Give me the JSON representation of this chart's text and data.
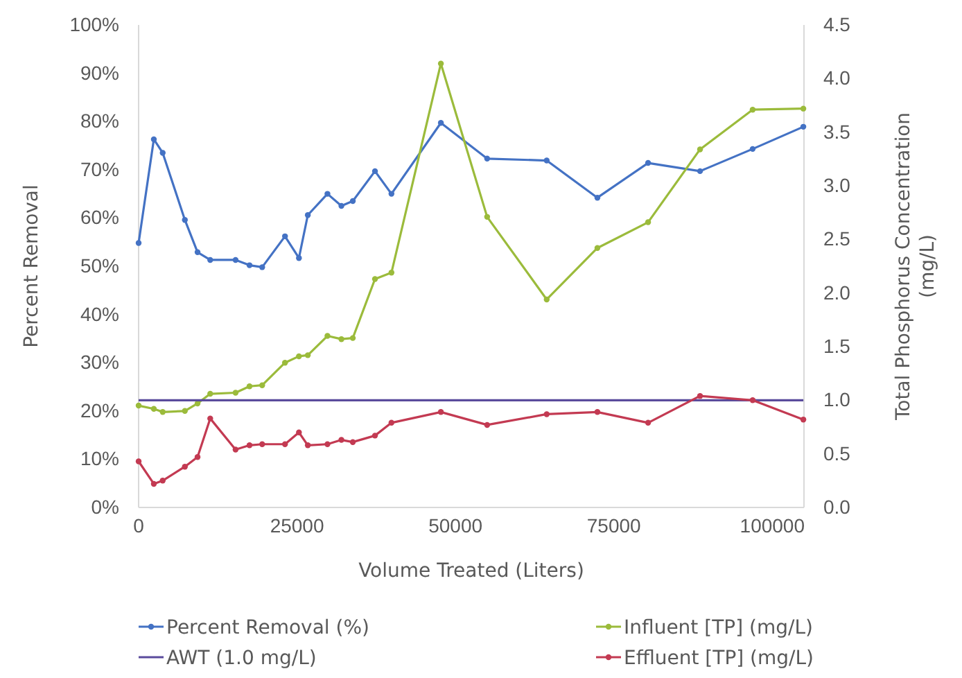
{
  "chart_data": {
    "type": "line",
    "xlabel": "Volume Treated (Liters)",
    "ylabel": "Percent Removal",
    "y2label": "Total Phosphorus Concentration (mg/L)",
    "xlim": [
      0,
      105000
    ],
    "xticks": [
      0,
      25000,
      50000,
      75000,
      100000
    ],
    "ylim": [
      0,
      100
    ],
    "yticks": [
      {
        "value": 0,
        "label": "0%"
      },
      {
        "value": 10,
        "label": "10%"
      },
      {
        "value": 20,
        "label": "20%"
      },
      {
        "value": 30,
        "label": "30%"
      },
      {
        "value": 40,
        "label": "40%"
      },
      {
        "value": 50,
        "label": "50%"
      },
      {
        "value": 60,
        "label": "60%"
      },
      {
        "value": 70,
        "label": "70%"
      },
      {
        "value": 80,
        "label": "80%"
      },
      {
        "value": 90,
        "label": "90%"
      },
      {
        "value": 100,
        "label": "100%"
      }
    ],
    "y2lim": [
      0,
      4.5
    ],
    "y2ticks": [
      {
        "value": 0,
        "label": "0.0"
      },
      {
        "value": 0.5,
        "label": "0.5"
      },
      {
        "value": 1,
        "label": "1.0"
      },
      {
        "value": 1.5,
        "label": "1.5"
      },
      {
        "value": 2,
        "label": "2.0"
      },
      {
        "value": 2.5,
        "label": "2.5"
      },
      {
        "value": 3,
        "label": "3.0"
      },
      {
        "value": 3.5,
        "label": "3.5"
      },
      {
        "value": 4,
        "label": "4.0"
      },
      {
        "value": 4.5,
        "label": "4.5"
      }
    ],
    "legend": "bottom",
    "marker": "circle",
    "line_style": "solid",
    "x": [
      0,
      2400,
      3800,
      7300,
      9300,
      11300,
      15300,
      17500,
      19500,
      23100,
      25300,
      26700,
      29800,
      32000,
      33800,
      37300,
      39900,
      47700,
      55000,
      64400,
      72400,
      80400,
      88600,
      96900,
      104900
    ],
    "series": [
      {
        "name": "Percent Removal (%)",
        "color": "#4472c4",
        "values": [
          54.8,
          76.3,
          73.5,
          59.6,
          52.9,
          51.3,
          51.3,
          50.2,
          49.8,
          56.2,
          51.7,
          60.6,
          65,
          62.5,
          63.5,
          69.7,
          65,
          79.7,
          72.3,
          71.9,
          64.2,
          71.4,
          69.7,
          74.3,
          78.9
        ]
      },
      {
        "name": "Influent [TP] (mg/L)",
        "color": "#9bbb3b",
        "axis": "y2",
        "values": [
          0.95,
          0.92,
          0.89,
          0.9,
          0.97,
          1.06,
          1.07,
          1.13,
          1.14,
          1.35,
          1.41,
          1.42,
          1.6,
          1.57,
          1.58,
          2.13,
          2.19,
          4.14,
          2.71,
          1.94,
          2.42,
          2.66,
          3.34,
          3.71,
          3.72
        ]
      },
      {
        "name": "AWT (1.0 mg/L)",
        "color": "#5a4b9c",
        "axis": "y2",
        "marker": "none",
        "x": [
          0,
          104900
        ],
        "values": [
          1,
          1
        ]
      },
      {
        "name": "Effluent [TP] (mg/L)",
        "color": "#c33a52",
        "axis": "y2",
        "values": [
          0.43,
          0.22,
          0.25,
          0.38,
          0.47,
          0.83,
          0.54,
          0.58,
          0.59,
          0.59,
          0.7,
          0.58,
          0.59,
          0.63,
          0.61,
          0.67,
          0.79,
          0.89,
          0.77,
          0.87,
          0.89,
          0.79,
          1.04,
          1.0,
          0.82
        ]
      }
    ]
  }
}
